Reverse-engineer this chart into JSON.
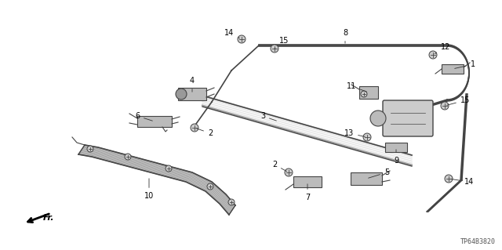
{
  "bg_color": "#ffffff",
  "fig_width": 6.4,
  "fig_height": 3.19,
  "dpi": 100,
  "part_number": "TP64B3820",
  "direction_label": "Fr.",
  "line_color": "#444444",
  "part_color_dark": "#555555",
  "part_color_light": "#aaaaaa",
  "label_fontsize": 7.0,
  "label_color": "#000000"
}
